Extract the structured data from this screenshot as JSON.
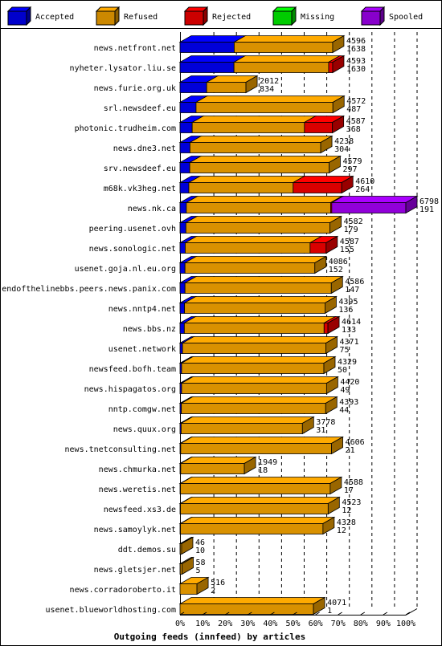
{
  "chart_data": {
    "type": "bar",
    "stacked": true,
    "orientation": "horizontal",
    "title": "Outgoing feeds (innfeed) by articles",
    "legend_position": "top",
    "grid": true,
    "xlim": [
      0,
      100
    ],
    "x_ticks": [
      "0%",
      "10%",
      "20%",
      "30%",
      "40%",
      "50%",
      "60%",
      "70%",
      "80%",
      "90%",
      "100%"
    ],
    "legend": [
      {
        "name": "Accepted",
        "color": "#0000ff"
      },
      {
        "name": "Refused",
        "color": "#ffaa00"
      },
      {
        "name": "Rejected",
        "color": "#ff0000"
      },
      {
        "name": "Missing",
        "color": "#00ff00"
      },
      {
        "name": "Spooled",
        "color": "#aa00ff"
      }
    ],
    "categories": [
      "news.netfront.net",
      "nyheter.lysator.liu.se",
      "news.furie.org.uk",
      "srl.newsdeef.eu",
      "photonic.trudheim.com",
      "news.dne3.net",
      "srv.newsdeef.eu",
      "m68k.vk3heg.net",
      "news.nk.ca",
      "peering.usenet.ovh",
      "news.sonologic.net",
      "usenet.goja.nl.eu.org",
      "endofthelinebbs.peers.news.panix.com",
      "news.nntp4.net",
      "news.bbs.nz",
      "usenet.network",
      "newsfeed.bofh.team",
      "news.hispagatos.org",
      "nntp.comgw.net",
      "news.quux.org",
      "news.tnetconsulting.net",
      "news.chmurka.net",
      "news.weretis.net",
      "newsfeed.xs3.de",
      "news.samoylyk.net",
      "ddt.demos.su",
      "news.gletsjer.net",
      "news.corradoroberto.it",
      "usenet.blueworldhosting.com"
    ],
    "offered_labels": [
      "4596",
      "4593",
      "2012",
      "4572",
      "4587",
      "4238",
      "4579",
      "4610",
      "6798",
      "4582",
      "4587",
      "4086",
      "4586",
      "4395",
      "4614",
      "4371",
      "4329",
      "4420",
      "4393",
      "3778",
      "4606",
      "1949",
      "4588",
      "4523",
      "4328",
      "46",
      "58",
      "516",
      "4071"
    ],
    "accepted_labels": [
      "1638",
      "1630",
      "834",
      "487",
      "368",
      "304",
      "297",
      "264",
      "191",
      "179",
      "155",
      "152",
      "147",
      "136",
      "133",
      "75",
      "50",
      "49",
      "44",
      "31",
      "21",
      "18",
      "17",
      "12",
      "12",
      "10",
      "5",
      "2",
      "1"
    ],
    "series": [
      {
        "name": "Accepted",
        "color": "#0000ff",
        "values": [
          24,
          23.9,
          11.8,
          7.1,
          5.4,
          4.4,
          4.3,
          3.9,
          2.8,
          2.6,
          2.3,
          2.2,
          2.2,
          2.0,
          1.9,
          1.1,
          0.7,
          0.7,
          0.6,
          0.5,
          0.3,
          0.3,
          0.2,
          0.2,
          0.2,
          0.1,
          0.1,
          0.0,
          0.0
        ]
      },
      {
        "name": "Refused",
        "color": "#ffaa00",
        "values": [
          43.6,
          41.9,
          17.4,
          60.6,
          49.7,
          57.9,
          61.7,
          46.2,
          63.9,
          63.8,
          55.3,
          57.5,
          64.8,
          62.2,
          61.9,
          63.5,
          63.0,
          64.2,
          63.9,
          53.7,
          66.8,
          28.2,
          66.3,
          65.4,
          63.1,
          0.6,
          0.8,
          7.5,
          59.1
        ]
      },
      {
        "name": "Rejected",
        "color": "#ff0000",
        "values": [
          0.0,
          1.8,
          0.0,
          0.0,
          12.4,
          0.0,
          0.0,
          21.5,
          0.5,
          0.0,
          7.1,
          0.0,
          0.0,
          0.0,
          1.7,
          0.0,
          0.0,
          0.0,
          0.0,
          0.0,
          0.0,
          0.0,
          0.0,
          0.0,
          0.0,
          0.0,
          0.0,
          0.0,
          0.0
        ]
      },
      {
        "name": "Missing",
        "color": "#00ff00",
        "values": [
          0.0,
          0.0,
          0.0,
          0.0,
          0.0,
          0.0,
          0.0,
          0.0,
          0.0,
          0.0,
          0.0,
          0.0,
          0.0,
          0.0,
          0.0,
          0.0,
          0.0,
          0.0,
          0.0,
          0.0,
          0.0,
          0.0,
          0.0,
          0.0,
          0.0,
          0.0,
          0.0,
          0.0,
          0.0
        ]
      },
      {
        "name": "Spooled",
        "color": "#aa00ff",
        "values": [
          0.0,
          0.0,
          0.0,
          0.0,
          0.0,
          0.0,
          0.0,
          0.0,
          32.8,
          0.0,
          0.0,
          0.0,
          0.0,
          0.0,
          0.0,
          0.0,
          0.0,
          0.0,
          0.0,
          0.0,
          0.0,
          0.0,
          0.0,
          0.0,
          0.0,
          0.0,
          0.0,
          0.0,
          0.0
        ]
      }
    ]
  }
}
